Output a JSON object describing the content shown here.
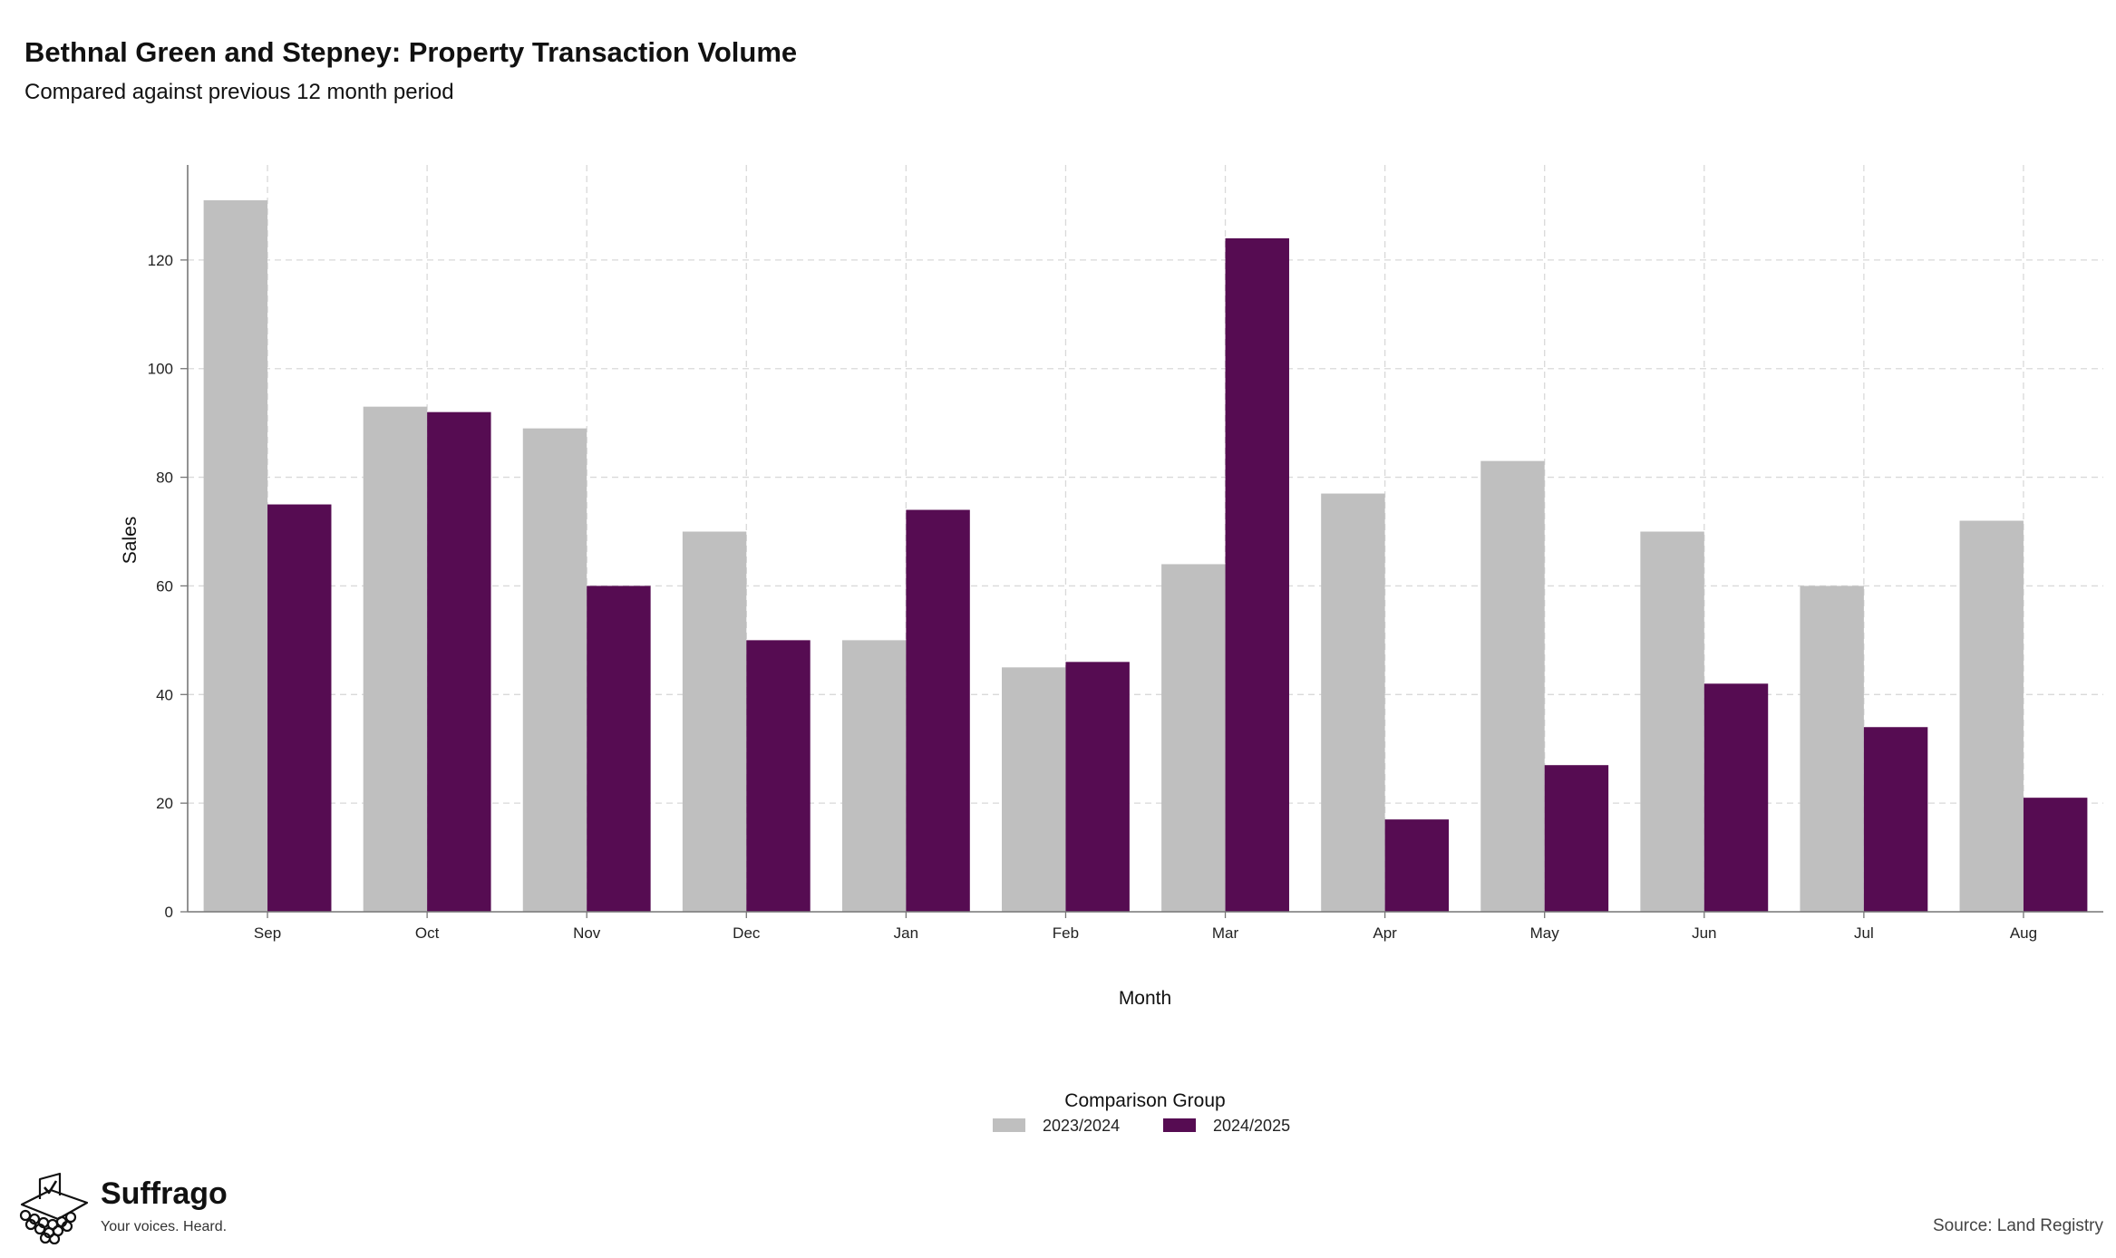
{
  "header": {
    "title": "Bethnal Green and Stepney: Property Transaction Volume",
    "subtitle": "Compared against previous 12 month period"
  },
  "chart_data": {
    "type": "bar",
    "categories": [
      "Sep",
      "Oct",
      "Nov",
      "Dec",
      "Jan",
      "Feb",
      "Mar",
      "Apr",
      "May",
      "Jun",
      "Jul",
      "Aug"
    ],
    "series": [
      {
        "name": "2023/2024",
        "color": "#bfbfbf",
        "values": [
          131,
          93,
          89,
          70,
          50,
          45,
          64,
          77,
          83,
          70,
          60,
          72
        ]
      },
      {
        "name": "2024/2025",
        "color": "#560c52",
        "values": [
          75,
          92,
          60,
          50,
          74,
          46,
          124,
          17,
          27,
          42,
          34,
          21
        ]
      }
    ],
    "xlabel": "Month",
    "ylabel": "Sales",
    "ylim": [
      0,
      137.5
    ],
    "yticks": [
      0,
      20,
      40,
      60,
      80,
      100,
      120
    ],
    "grid": true,
    "legend": {
      "title": "Comparison Group",
      "position": "bottom"
    }
  },
  "footer": {
    "brand": "Suffrago",
    "tagline": "Your voices. Heard.",
    "source": "Source: Land Registry"
  }
}
